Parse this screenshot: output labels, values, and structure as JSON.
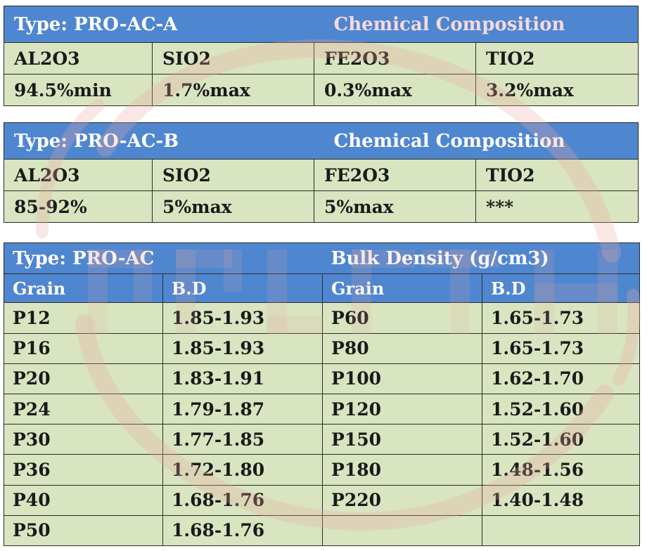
{
  "table_a": {
    "type_label": "Type: PRO-AC-A",
    "section_label": "Chemical Composition",
    "columns": [
      "AL2O3",
      "SIO2",
      "FE2O3",
      "TIO2"
    ],
    "values": [
      "94.5%min",
      "1.7%max",
      "0.3%max",
      "3.2%max"
    ]
  },
  "table_b": {
    "type_label": "Type: PRO-AC-B",
    "section_label": "Chemical Composition",
    "columns": [
      "AL2O3",
      "SIO2",
      "FE2O3",
      "TIO2"
    ],
    "values": [
      "85-92%",
      "5%max",
      "5%max",
      "***"
    ]
  },
  "table_c": {
    "type_label": "Type: PRO-AC",
    "section_label": "Bulk Density (g/cm3)",
    "columns": [
      "Grain",
      "B.D",
      "Grain",
      "B.D"
    ],
    "rows": [
      [
        "P12",
        "1.85-1.93",
        "P60",
        "1.65-1.73"
      ],
      [
        "P16",
        "1.85-1.93",
        "P80",
        "1.65-1.73"
      ],
      [
        "P20",
        "1.83-1.91",
        "P100",
        "1.62-1.70"
      ],
      [
        "P24",
        "1.79-1.87",
        "P120",
        "1.52-1.60"
      ],
      [
        "P30",
        "1.77-1.85",
        "P150",
        "1.52-1.60"
      ],
      [
        "P36",
        "1.72-1.80",
        "P180",
        "1.48-1.56"
      ],
      [
        "P40",
        "1.68-1.76",
        "P220",
        "1.40-1.48"
      ],
      [
        "P50",
        "1.68-1.76",
        "",
        ""
      ]
    ]
  },
  "colors": {
    "header_blue": "#4f86d0",
    "cell_green": "#d8e5c0",
    "watermark_red": "#e8a9a0"
  }
}
